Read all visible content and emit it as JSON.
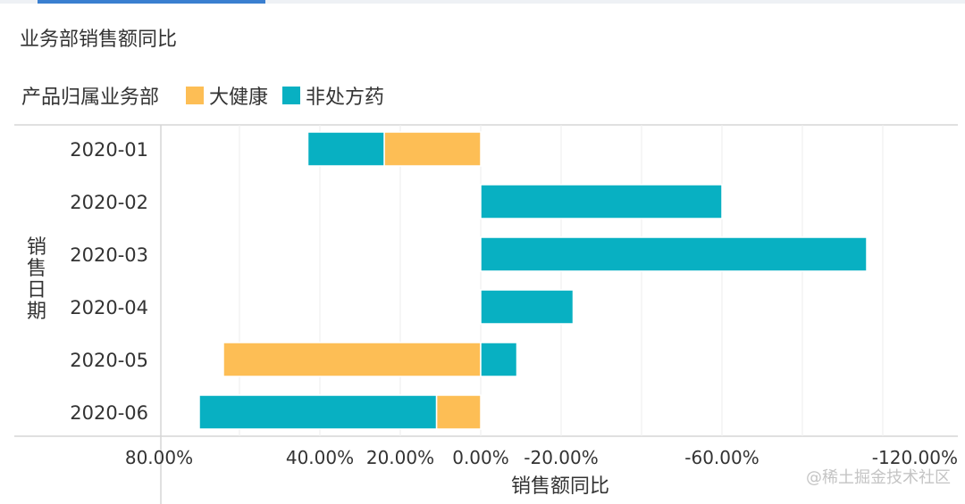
{
  "title": "业务部销售额同比",
  "legend": {
    "title": "产品归属业务部",
    "items": [
      {
        "name": "大健康",
        "color": "#FDBE55"
      },
      {
        "name": "非处方药",
        "color": "#08B0C2"
      }
    ]
  },
  "watermark": "@稀土掘金技术社区",
  "chart_data": {
    "type": "bar",
    "orientation": "horizontal",
    "stacked": true,
    "x_reversed": true,
    "xlabel": "销售额同比",
    "ylabel": "销售日期",
    "categories": [
      "2020-01",
      "2020-02",
      "2020-03",
      "2020-04",
      "2020-05",
      "2020-06"
    ],
    "series": [
      {
        "name": "大健康",
        "color": "#FDBE55",
        "values": [
          24,
          0,
          0,
          0,
          64,
          11
        ]
      },
      {
        "name": "非处方药",
        "color": "#08B0C2",
        "values": [
          19,
          -60,
          -96,
          -23,
          -9,
          59
        ]
      }
    ],
    "x_ticks": [
      {
        "value": 80,
        "label": "80.00%"
      },
      {
        "value": 40,
        "label": "40.00%"
      },
      {
        "value": 20,
        "label": "20.00%"
      },
      {
        "value": 0,
        "label": "0.00%"
      },
      {
        "value": -20,
        "label": "-20.00%"
      },
      {
        "value": -60,
        "label": "-60.00%"
      },
      {
        "value": -120,
        "label": "-120.00%"
      }
    ],
    "x_grid": [
      60,
      40,
      20,
      0,
      -20,
      -40,
      -60,
      -80,
      -100
    ],
    "grid": true
  }
}
